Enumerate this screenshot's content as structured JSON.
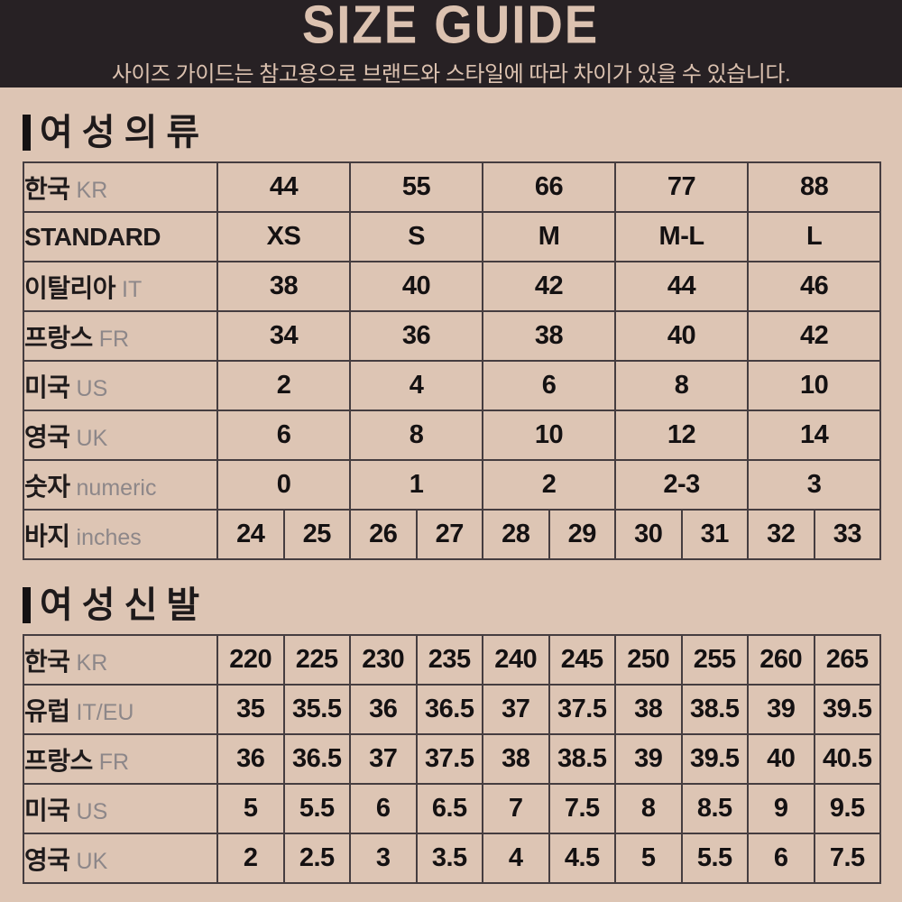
{
  "header": {
    "title": "SIZE GUIDE",
    "subtitle": "사이즈 가이드는 참고용으로 브랜드와 스타일에 따라 차이가 있을 수 있습니다."
  },
  "colors": {
    "page_bg": "#ddc5b4",
    "header_bg": "#272124",
    "header_text": "#dcc2b0",
    "table_border": "#453d40",
    "label_text": "#1e1a1b",
    "sublabel_text": "#8d8789",
    "value_text": "#141112"
  },
  "sections": [
    {
      "id": "women-clothing",
      "title": "여성의류",
      "table": {
        "rows": [
          {
            "label": "한국",
            "sublabel": "KR",
            "span": 2,
            "cells": [
              "44",
              "55",
              "66",
              "77",
              "88"
            ]
          },
          {
            "label": "STANDARD",
            "sublabel": "",
            "span": 2,
            "cells": [
              "XS",
              "S",
              "M",
              "M-L",
              "L"
            ]
          },
          {
            "label": "이탈리아",
            "sublabel": "IT",
            "span": 2,
            "cells": [
              "38",
              "40",
              "42",
              "44",
              "46"
            ]
          },
          {
            "label": "프랑스",
            "sublabel": "FR",
            "span": 2,
            "cells": [
              "34",
              "36",
              "38",
              "40",
              "42"
            ]
          },
          {
            "label": "미국",
            "sublabel": "US",
            "span": 2,
            "cells": [
              "2",
              "4",
              "6",
              "8",
              "10"
            ]
          },
          {
            "label": "영국",
            "sublabel": "UK",
            "span": 2,
            "cells": [
              "6",
              "8",
              "10",
              "12",
              "14"
            ]
          },
          {
            "label": "숫자",
            "sublabel": "numeric",
            "span": 2,
            "cells": [
              "0",
              "1",
              "2",
              "2-3",
              "3"
            ]
          },
          {
            "label": "바지",
            "sublabel": "inches",
            "span": 1,
            "cells": [
              "24",
              "25",
              "26",
              "27",
              "28",
              "29",
              "30",
              "31",
              "32",
              "33"
            ]
          }
        ]
      }
    },
    {
      "id": "women-shoes",
      "title": "여성신발",
      "table": {
        "rows": [
          {
            "label": "한국",
            "sublabel": "KR",
            "span": 1,
            "cells": [
              "220",
              "225",
              "230",
              "235",
              "240",
              "245",
              "250",
              "255",
              "260",
              "265"
            ]
          },
          {
            "label": "유럽",
            "sublabel": "IT/EU",
            "span": 1,
            "cells": [
              "35",
              "35.5",
              "36",
              "36.5",
              "37",
              "37.5",
              "38",
              "38.5",
              "39",
              "39.5"
            ]
          },
          {
            "label": "프랑스",
            "sublabel": "FR",
            "span": 1,
            "cells": [
              "36",
              "36.5",
              "37",
              "37.5",
              "38",
              "38.5",
              "39",
              "39.5",
              "40",
              "40.5"
            ]
          },
          {
            "label": "미국",
            "sublabel": "US",
            "span": 1,
            "cells": [
              "5",
              "5.5",
              "6",
              "6.5",
              "7",
              "7.5",
              "8",
              "8.5",
              "9",
              "9.5"
            ]
          },
          {
            "label": "영국",
            "sublabel": "UK",
            "span": 1,
            "cells": [
              "2",
              "2.5",
              "3",
              "3.5",
              "4",
              "4.5",
              "5",
              "5.5",
              "6",
              "7.5"
            ]
          }
        ]
      }
    }
  ]
}
